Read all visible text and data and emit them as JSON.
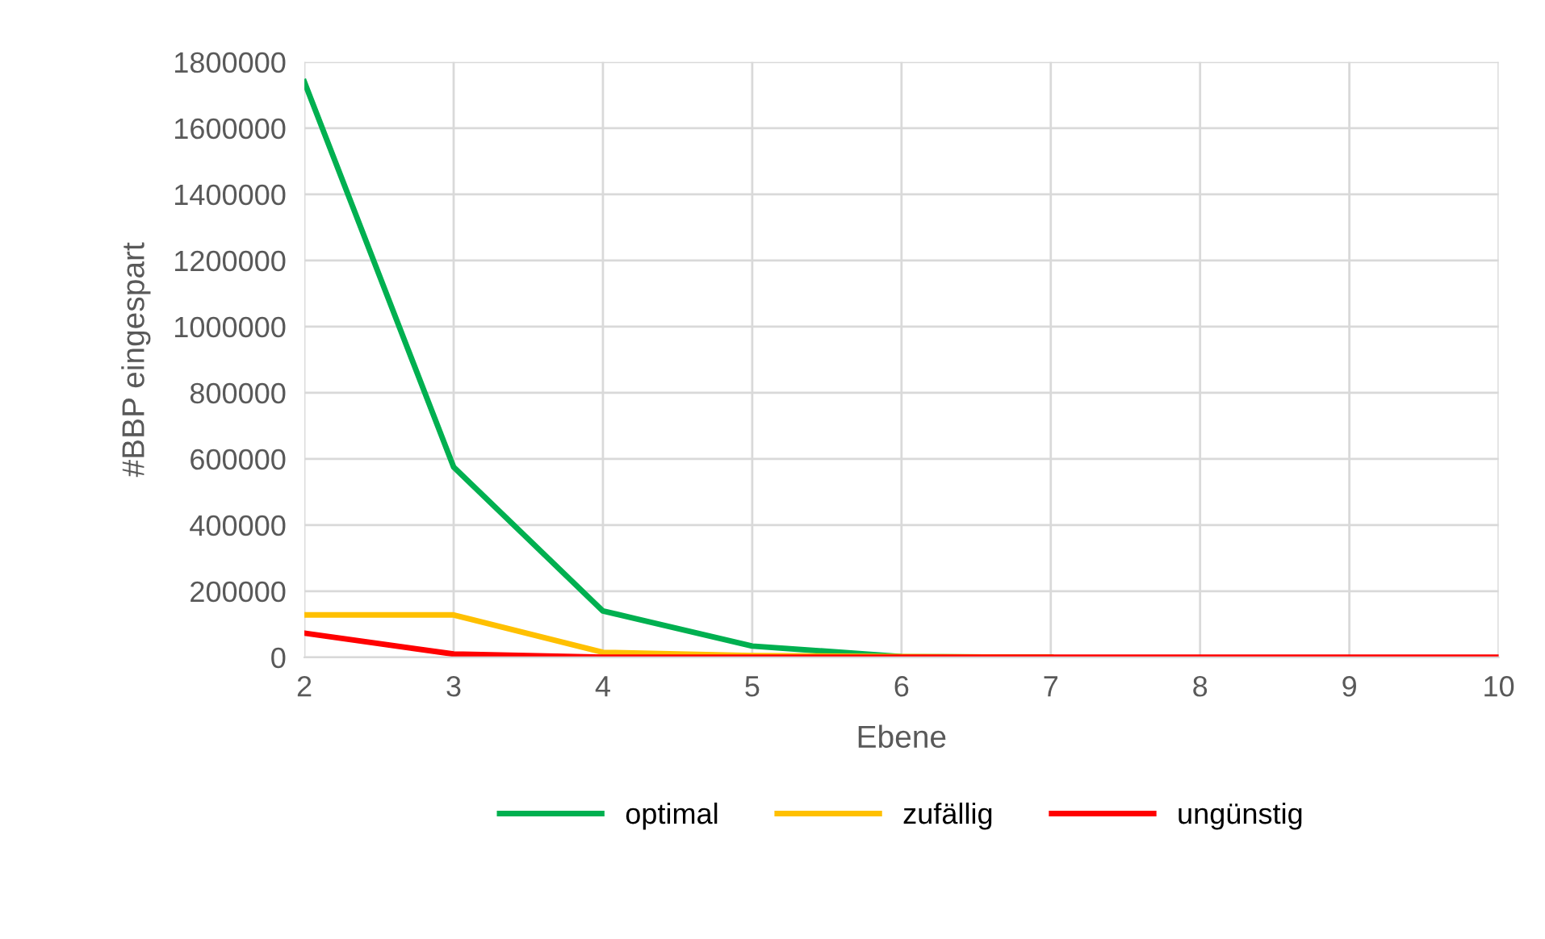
{
  "chart_data": {
    "type": "line",
    "xlabel": "Ebene",
    "ylabel": "#BBP eingespart",
    "x": [
      2,
      3,
      4,
      5,
      6,
      7,
      8,
      9,
      10
    ],
    "series": [
      {
        "name": "optimal",
        "color": "#00b050",
        "values": [
          1740000,
          575000,
          140000,
          34000,
          2000,
          0,
          null,
          null,
          null
        ]
      },
      {
        "name": "zufällig",
        "color": "#ffc000",
        "values": [
          128000,
          128000,
          15000,
          5000,
          2000,
          0,
          null,
          null,
          null
        ]
      },
      {
        "name": "ungünstig",
        "color": "#ff0000",
        "values": [
          73000,
          10000,
          0,
          0,
          0,
          0,
          0,
          0,
          0
        ]
      }
    ],
    "xlim": [
      2,
      10
    ],
    "xticks": [
      2,
      3,
      4,
      5,
      6,
      7,
      8,
      9,
      10
    ],
    "ylim": [
      0,
      1800000
    ],
    "yticks": [
      0,
      200000,
      400000,
      600000,
      800000,
      1000000,
      1200000,
      1400000,
      1600000,
      1800000
    ],
    "grid": true,
    "legend": "bottom",
    "marker": "none",
    "line_style": "solid"
  }
}
